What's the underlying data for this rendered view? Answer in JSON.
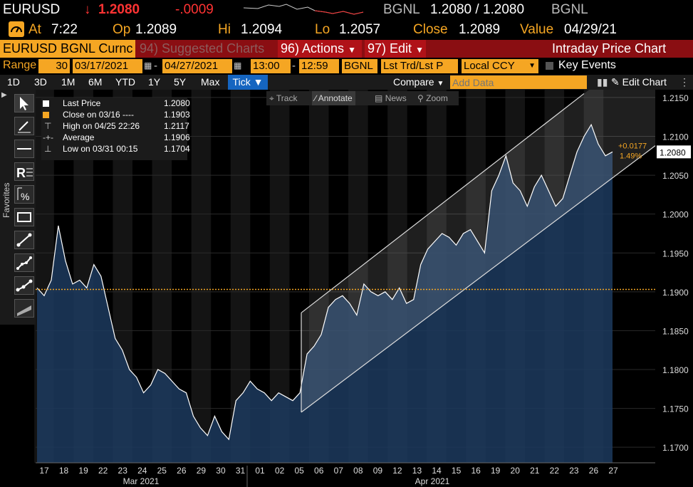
{
  "header": {
    "ticker": "EURUSD",
    "arrow": "↓",
    "last": "1.2080",
    "change": "-.0009",
    "source": "BGNL",
    "bid_ask": "1.2080 / 1.2080",
    "source2": "BGNL"
  },
  "quote": {
    "at_label": "At",
    "at_value": "7:22",
    "op_label": "Op",
    "op_value": "1.2089",
    "hi_label": "Hi",
    "hi_value": "1.2094",
    "lo_label": "Lo",
    "lo_value": "1.2057",
    "close_label": "Close",
    "close_value": "1.2089",
    "value_label": "Value",
    "value_date": "04/29/21"
  },
  "menubar": {
    "security": "EURUSD BGNL Curnc",
    "suggested_num": "94)",
    "suggested": "Suggested Charts",
    "actions_num": "96)",
    "actions": "Actions",
    "edit_num": "97)",
    "edit": "Edit",
    "title": "Intraday Price Chart"
  },
  "range_bar": {
    "range_label": "Range",
    "period": "30",
    "start_date": "03/17/2021",
    "end_date": "04/27/2021",
    "start_time": "13:00",
    "end_time": "12:59",
    "source": "BGNL",
    "field": "Lst Trd/Lst P",
    "currency": "Local CCY",
    "key_events": "Key Events"
  },
  "timeframes": [
    "1D",
    "3D",
    "1M",
    "6M",
    "YTD",
    "1Y",
    "5Y",
    "Max"
  ],
  "tick_button": "Tick ▼",
  "compare_label": "Compare",
  "add_data_placeholder": "Add Data",
  "edit_chart_label": "Edit Chart",
  "chart_toolbar": {
    "track": "Track",
    "annotate": "Annotate",
    "news": "News",
    "zoom": "Zoom"
  },
  "favorites_label": "Favorites",
  "legend": {
    "last_price_label": "Last Price",
    "last_price_value": "1.2080",
    "close_label": "Close on 03/16 ----",
    "close_value": "1.1903",
    "high_label": "High on 04/25 22:26",
    "high_value": "1.2117",
    "average_label": "Average",
    "average_value": "1.1906",
    "low_label": "Low on 03/31 00:15",
    "low_value": "1.1704"
  },
  "annotations": {
    "last_price_tag": "1.2080",
    "change_abs": "+0.0177",
    "change_pct": "1.49%"
  },
  "colors": {
    "accent": "#f5a623",
    "header_red": "#8a0e12",
    "down_red": "#ff3333",
    "area_fill": "#1c3a5e",
    "line": "#ffffff"
  },
  "chart_data": {
    "type": "area",
    "ylim": [
      1.168,
      1.216
    ],
    "y_ticks": [
      "1.1700",
      "1.1750",
      "1.1800",
      "1.1850",
      "1.1900",
      "1.1950",
      "1.2000",
      "1.2050",
      "1.2100",
      "1.2150"
    ],
    "x_ticks": [
      "17",
      "18",
      "19",
      "22",
      "23",
      "24",
      "25",
      "26",
      "29",
      "30",
      "31",
      "01",
      "02",
      "05",
      "06",
      "07",
      "08",
      "09",
      "12",
      "13",
      "14",
      "15",
      "16",
      "19",
      "20",
      "21",
      "22",
      "23",
      "26",
      "27"
    ],
    "x_month_labels": [
      "Mar 2021",
      "Apr 2021"
    ],
    "reference_line": 1.1903,
    "series": [
      {
        "values": [
          1.1905,
          1.1895,
          1.1915,
          1.1985,
          1.194,
          1.191,
          1.1915,
          1.1905,
          1.1935,
          1.192,
          1.188,
          1.184,
          1.1825,
          1.18,
          1.179,
          1.177,
          1.178,
          1.18,
          1.1795,
          1.1785,
          1.1775,
          1.177,
          1.174,
          1.1725,
          1.1715,
          1.174,
          1.172,
          1.171,
          1.176,
          1.177,
          1.1785,
          1.1775,
          1.177,
          1.176,
          1.177,
          1.1765,
          1.176,
          1.177,
          1.182,
          1.183,
          1.1845,
          1.188,
          1.189,
          1.1895,
          1.1885,
          1.187,
          1.191,
          1.19,
          1.1895,
          1.19,
          1.189,
          1.1905,
          1.1885,
          1.189,
          1.1935,
          1.1955,
          1.1965,
          1.1975,
          1.197,
          1.196,
          1.1975,
          1.198,
          1.1965,
          1.195,
          1.203,
          1.205,
          1.2075,
          1.204,
          1.203,
          1.201,
          1.2035,
          1.205,
          1.203,
          1.201,
          1.202,
          1.205,
          1.208,
          1.21,
          1.2115,
          1.209,
          1.2075,
          1.208
        ]
      }
    ]
  }
}
